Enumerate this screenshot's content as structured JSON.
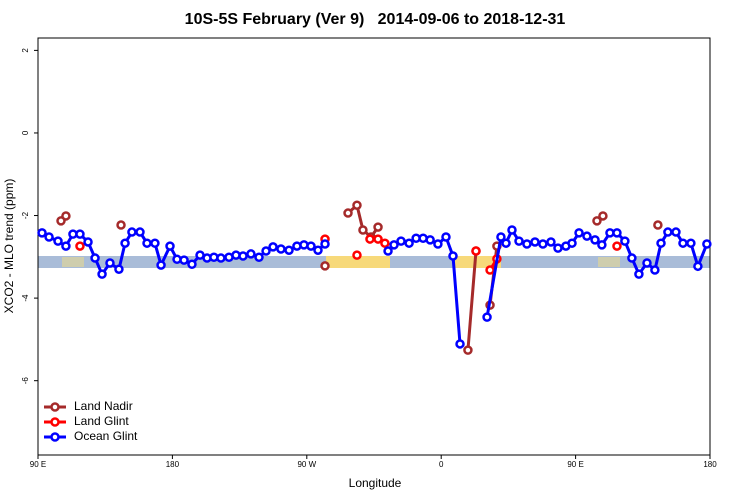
{
  "chart_data": {
    "type": "line",
    "title": "10S-5S February (Ver 9)   2014-09-06 to 2018-12-31",
    "x_label": "Longitude",
    "y_label": "XCO2 - MLO trend (ppm)",
    "xlim": [
      90,
      540
    ],
    "ylim": [
      -7.8,
      2.3
    ],
    "xticks": [
      {
        "value": 90,
        "label": "90 E"
      },
      {
        "value": 180,
        "label": "180"
      },
      {
        "value": 270,
        "label": "90 W"
      },
      {
        "value": 360,
        "label": "0"
      },
      {
        "value": 450,
        "label": "90 E"
      },
      {
        "value": 540,
        "label": "180"
      }
    ],
    "yticks": [
      2,
      0,
      -2,
      -4,
      -6
    ],
    "legend": "bottom-left",
    "series": [
      {
        "name": "Land Nadir",
        "color": "#a52a2a",
        "x": [
          105.4,
          108.7,
          null,
          145.6,
          null,
          282.2,
          null,
          297.6,
          303.6,
          307.6,
          313.0,
          317.7,
          null,
          377.9,
          383.3,
          null,
          392.7,
          397.3,
          null,
          464.3,
          468.3,
          null,
          505.1
        ],
        "values": [
          -2.13,
          -2.01,
          null,
          -2.23,
          null,
          -3.22,
          null,
          -1.94,
          -1.75,
          -2.35,
          -2.52,
          -2.28,
          null,
          -5.26,
          -2.86,
          null,
          -4.17,
          -2.74,
          null,
          -2.13,
          -2.01,
          null,
          -2.23
        ]
      },
      {
        "name": "Land Glint",
        "color": "#ff0000",
        "x": [
          118.1,
          null,
          282.2,
          null,
          303.6,
          null,
          312.3,
          317.7,
          322.3,
          null,
          383.3,
          null,
          392.7,
          397.3,
          null,
          477.7
        ],
        "values": [
          -2.74,
          null,
          -2.57,
          null,
          -2.96,
          null,
          -2.57,
          -2.57,
          -2.67,
          null,
          -2.86,
          null,
          -3.32,
          -3.05,
          null,
          -2.74
        ]
      },
      {
        "name": "Ocean Glint",
        "color": "#0000ff",
        "x": [
          92.7,
          97.4,
          103.4,
          108.7,
          113.4,
          118.1,
          123.5,
          128.2,
          132.9,
          138.2,
          144.2,
          148.3,
          152.9,
          158.3,
          163.0,
          168.3,
          172.4,
          178.4,
          183.1,
          187.8,
          193.1,
          198.5,
          203.2,
          207.8,
          212.5,
          217.9,
          222.6,
          227.3,
          232.6,
          238.0,
          242.7,
          247.4,
          252.7,
          258.1,
          263.4,
          268.1,
          272.8,
          277.5,
          282.2,
          null,
          324.4,
          328.4,
          333.1,
          338.5,
          343.2,
          347.9,
          352.6,
          357.8,
          363.2,
          367.9,
          372.6,
          null,
          390.7,
          400.0,
          403.4,
          407.4,
          412.1,
          417.4,
          422.8,
          428.1,
          433.5,
          438.2,
          443.5,
          447.6,
          452.3,
          457.6,
          463.0,
          467.6,
          473.0,
          477.7,
          483.0,
          487.7,
          492.4,
          497.8,
          503.1,
          507.2,
          511.8,
          517.2,
          521.9,
          527.2,
          531.9,
          537.9
        ],
        "values": [
          -2.42,
          -2.52,
          -2.62,
          -2.74,
          -2.45,
          -2.45,
          -2.64,
          -3.03,
          -3.42,
          -3.15,
          -3.3,
          -2.67,
          -2.4,
          -2.4,
          -2.67,
          -2.67,
          -3.2,
          -2.74,
          -3.06,
          -3.08,
          -3.18,
          -2.96,
          -3.03,
          -3.01,
          -3.03,
          -3.01,
          -2.96,
          -2.98,
          -2.93,
          -3.01,
          -2.86,
          -2.76,
          -2.81,
          -2.84,
          -2.74,
          -2.71,
          -2.74,
          -2.84,
          -2.69,
          null,
          -2.86,
          -2.71,
          -2.62,
          -2.67,
          -2.55,
          -2.55,
          -2.59,
          -2.69,
          -2.52,
          -2.98,
          -5.11,
          null,
          -4.46,
          -2.52,
          -2.67,
          -2.35,
          -2.62,
          -2.69,
          -2.64,
          -2.69,
          -2.64,
          -2.79,
          -2.74,
          -2.67,
          -2.42,
          -2.5,
          -2.59,
          -2.71,
          -2.42,
          -2.42,
          -2.62,
          -3.03,
          -3.42,
          -3.15,
          -3.32,
          -2.67,
          -2.4,
          -2.4,
          -2.67,
          -2.67,
          -3.23,
          -2.69
        ]
      }
    ]
  }
}
